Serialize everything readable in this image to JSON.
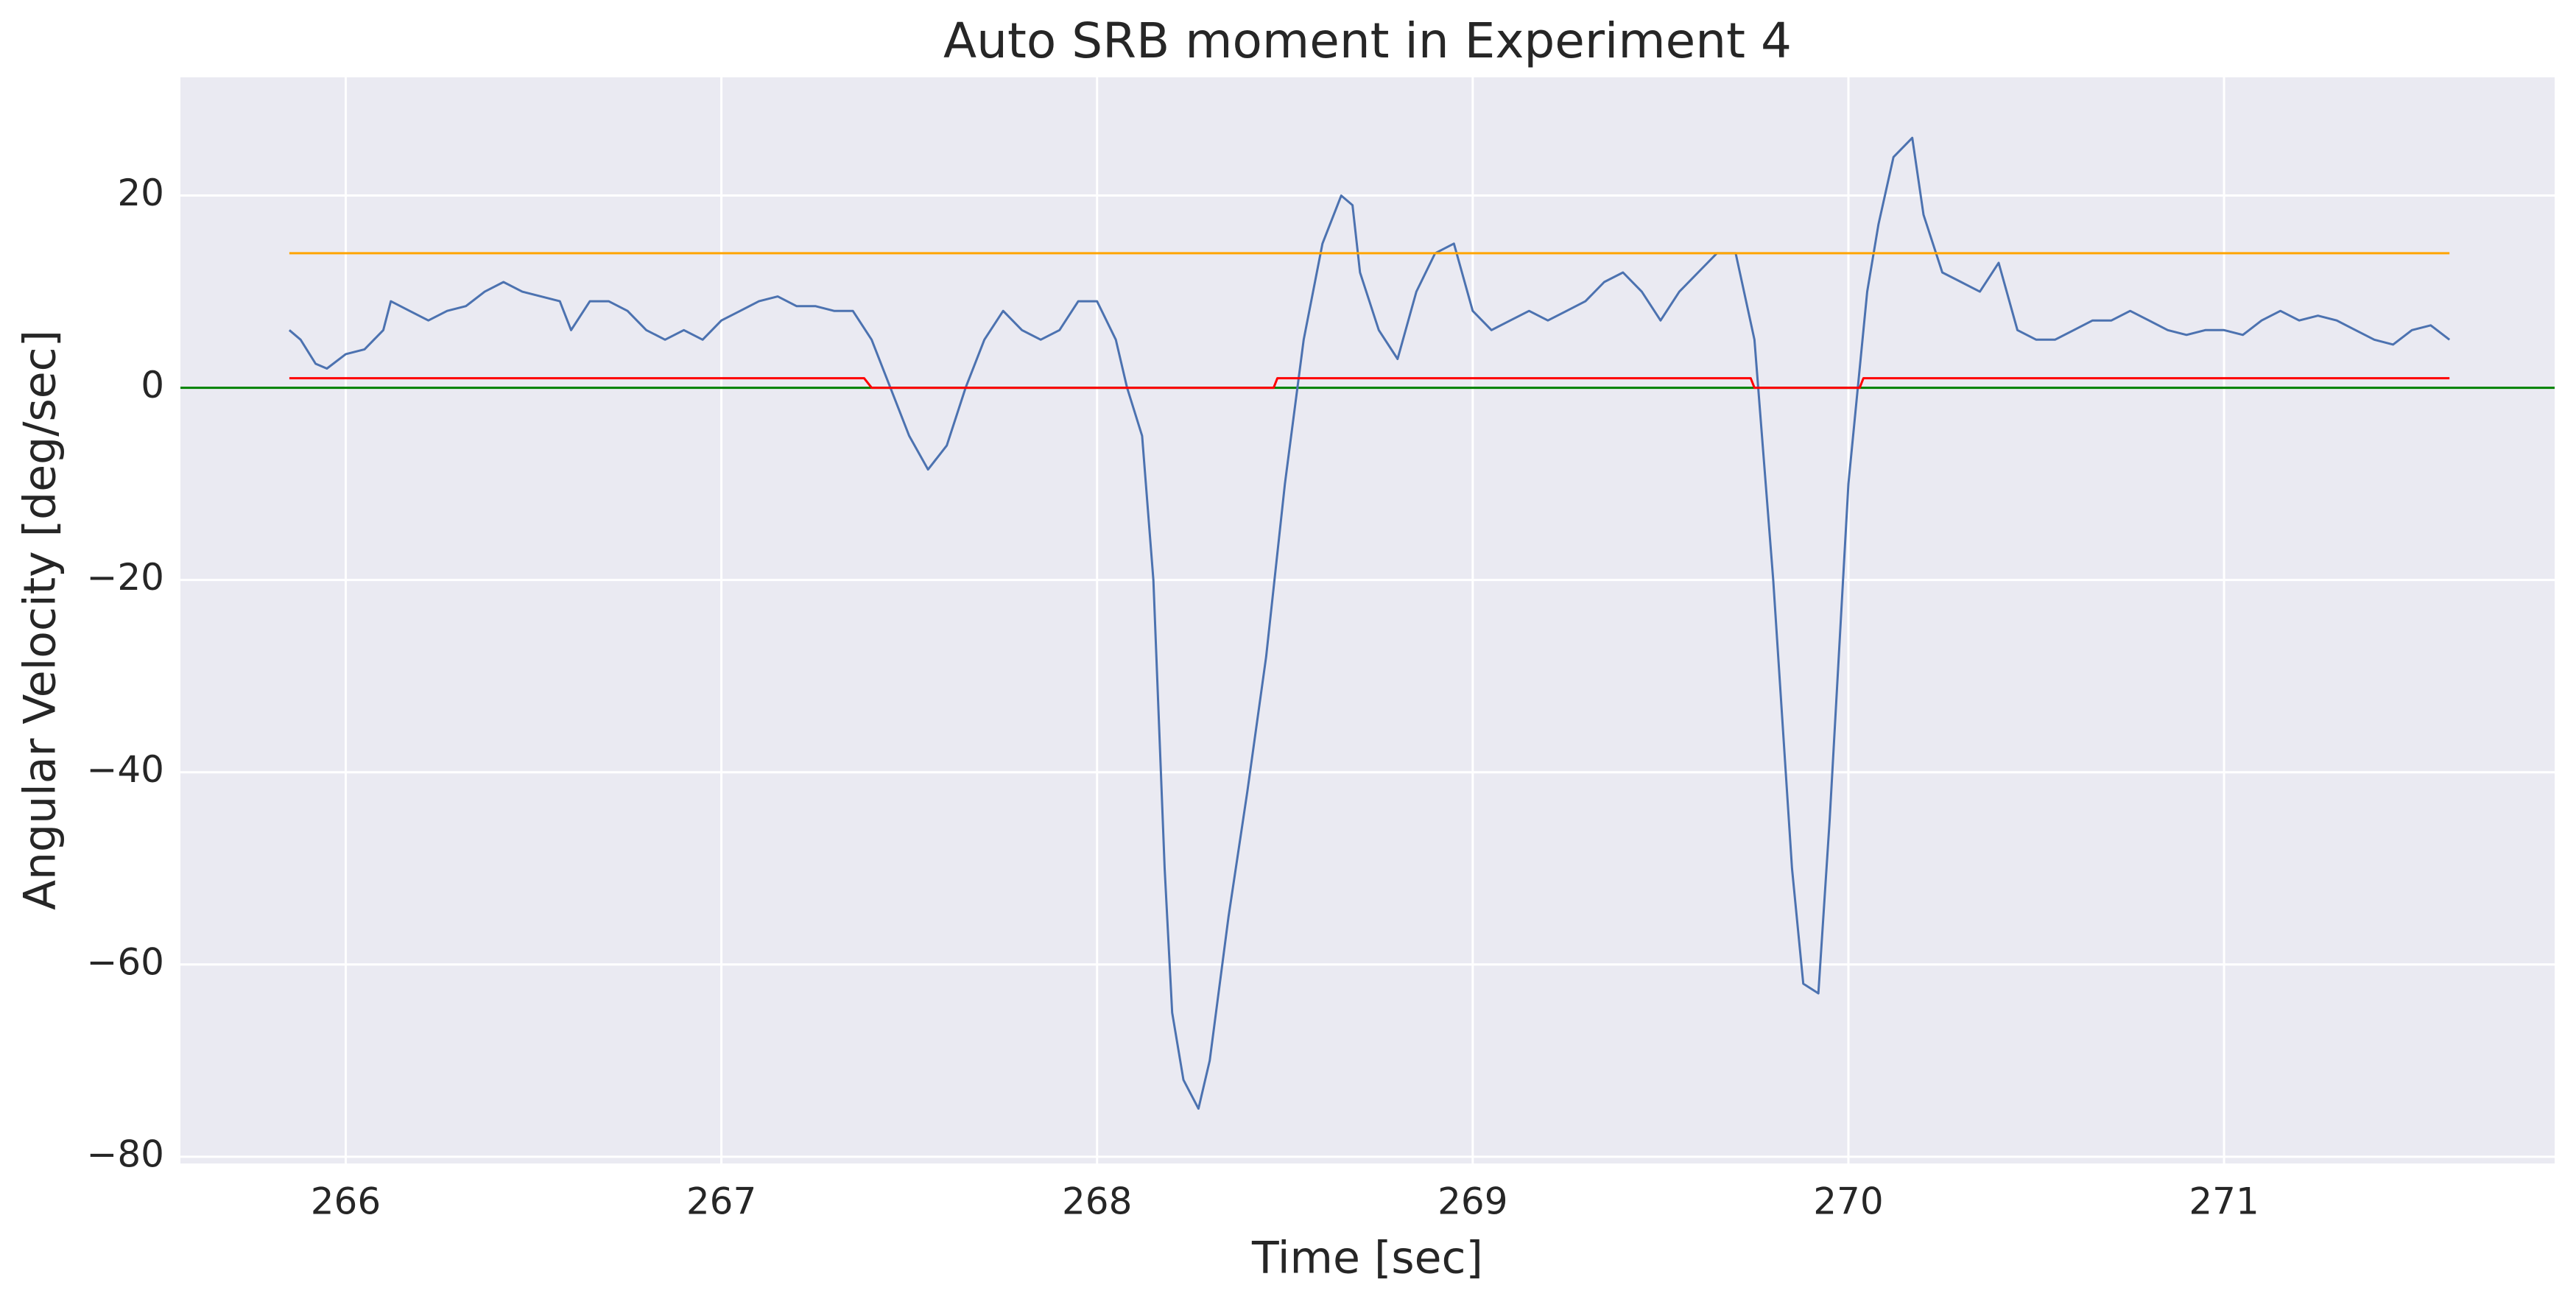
{
  "chart_data": {
    "type": "line",
    "title": "Auto SRB moment in Experiment 4",
    "x_label": "Time [sec]",
    "y_label": "Angular Velocity [deg/sec]",
    "xlim": [
      265.56,
      271.88
    ],
    "ylim": [
      -80.7,
      32.3
    ],
    "xticks": [
      266,
      267,
      268,
      269,
      270,
      271
    ],
    "yticks": [
      {
        "value": -80,
        "label": "−80"
      },
      {
        "value": -60,
        "label": "−60"
      },
      {
        "value": -40,
        "label": "−40"
      },
      {
        "value": -20,
        "label": "−20"
      },
      0,
      20
    ],
    "grid": true,
    "background": "#eaeaf2",
    "hlines": [
      {
        "value": 0,
        "color": "#008000"
      }
    ],
    "series": [
      {
        "color": "#4c72b0",
        "x": [
          265.85,
          265.88,
          265.92,
          265.95,
          266.0,
          266.05,
          266.1,
          266.12,
          266.17,
          266.22,
          266.27,
          266.32,
          266.37,
          266.42,
          266.47,
          266.52,
          266.57,
          266.6,
          266.65,
          266.7,
          266.75,
          266.8,
          266.85,
          266.9,
          266.95,
          267.0,
          267.05,
          267.1,
          267.15,
          267.2,
          267.25,
          267.3,
          267.35,
          267.4,
          267.45,
          267.5,
          267.55,
          267.6,
          267.65,
          267.7,
          267.75,
          267.8,
          267.85,
          267.9,
          267.95,
          268.0,
          268.05,
          268.08,
          268.12,
          268.15,
          268.18,
          268.2,
          268.23,
          268.27,
          268.3,
          268.35,
          268.4,
          268.45,
          268.5,
          268.55,
          268.6,
          268.65,
          268.68,
          268.7,
          268.75,
          268.8,
          268.85,
          268.9,
          268.95,
          269.0,
          269.05,
          269.1,
          269.15,
          269.2,
          269.25,
          269.3,
          269.35,
          269.4,
          269.45,
          269.5,
          269.55,
          269.6,
          269.65,
          269.7,
          269.75,
          269.8,
          269.85,
          269.88,
          269.92,
          269.95,
          270.0,
          270.05,
          270.08,
          270.12,
          270.17,
          270.2,
          270.25,
          270.3,
          270.35,
          270.4,
          270.45,
          270.5,
          270.55,
          270.6,
          270.65,
          270.7,
          270.75,
          270.8,
          270.85,
          270.9,
          270.95,
          271.0,
          271.05,
          271.1,
          271.15,
          271.2,
          271.25,
          271.3,
          271.35,
          271.4,
          271.45,
          271.5,
          271.55,
          271.6
        ],
        "values": [
          6,
          5,
          2.5,
          2,
          3.5,
          4,
          6,
          9,
          8,
          7,
          8,
          8.5,
          10,
          11,
          10,
          9.5,
          9,
          6,
          9,
          9,
          8,
          6,
          5,
          6,
          5,
          7,
          8,
          9,
          9.5,
          8.5,
          8.5,
          8,
          8,
          5,
          0,
          -5,
          -8.5,
          -6,
          0,
          5,
          8,
          6,
          5,
          6,
          9,
          9,
          5,
          0,
          -5,
          -20,
          -50,
          -65,
          -72,
          -75,
          -70,
          -55,
          -42,
          -28,
          -10,
          5,
          15,
          20,
          19,
          12,
          6,
          3,
          10,
          14,
          15,
          8,
          6,
          7,
          8,
          7,
          8,
          9,
          11,
          12,
          10,
          7,
          10,
          12,
          14,
          14,
          5,
          -20,
          -50,
          -62,
          -63,
          -45,
          -10,
          10,
          17,
          24,
          26,
          18,
          12,
          11,
          10,
          13,
          6,
          5,
          5,
          6,
          7,
          7,
          8,
          7,
          6,
          5.5,
          6,
          6,
          5.5,
          7,
          8,
          7,
          7.5,
          7,
          6,
          5,
          4.5,
          6,
          6.5,
          5
        ]
      },
      {
        "color": "#ffa500",
        "x": [
          265.85,
          271.6
        ],
        "values": [
          14,
          14
        ]
      },
      {
        "color": "#ff0000",
        "x": [
          265.85,
          267.38,
          267.4,
          268.47,
          268.48,
          269.74,
          269.75,
          270.03,
          270.04,
          271.6
        ],
        "values": [
          1,
          1,
          0,
          0,
          1,
          1,
          0,
          0,
          1,
          1
        ]
      }
    ]
  }
}
